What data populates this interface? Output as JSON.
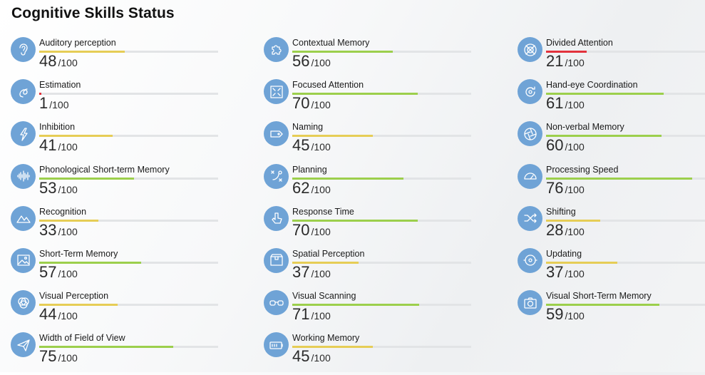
{
  "title": "Cognitive Skills Status",
  "max_label": "100",
  "separator": "/",
  "colors": {
    "green": "#9ccf4c",
    "yellow": "#e6cd56",
    "red": "#e2323c",
    "icon_bg": "#6fa3d6"
  },
  "columns": [
    {
      "skills": [
        {
          "name": "Auditory perception",
          "value": 48,
          "icon": "ear-icon"
        },
        {
          "name": "Estimation",
          "value": 1,
          "icon": "loop-icon"
        },
        {
          "name": "Inhibition",
          "value": 41,
          "icon": "bolt-icon"
        },
        {
          "name": "Phonological Short-term Memory",
          "value": 53,
          "icon": "soundwave-icon"
        },
        {
          "name": "Recognition",
          "value": 33,
          "icon": "mountains-icon"
        },
        {
          "name": "Short-Term Memory",
          "value": 57,
          "icon": "picture-icon"
        },
        {
          "name": "Visual Perception",
          "value": 44,
          "icon": "circles-icon"
        },
        {
          "name": "Width of Field of View",
          "value": 75,
          "icon": "paper-plane-icon"
        }
      ]
    },
    {
      "skills": [
        {
          "name": "Contextual Memory",
          "value": 56,
          "icon": "puzzle-icon"
        },
        {
          "name": "Focused Attention",
          "value": 70,
          "icon": "focus-icon"
        },
        {
          "name": "Naming",
          "value": 45,
          "icon": "tag-icon"
        },
        {
          "name": "Planning",
          "value": 62,
          "icon": "strategy-icon"
        },
        {
          "name": "Response Time",
          "value": 70,
          "icon": "pointer-icon"
        },
        {
          "name": "Spatial Perception",
          "value": 37,
          "icon": "box-icon"
        },
        {
          "name": "Visual Scanning",
          "value": 71,
          "icon": "glasses-icon"
        },
        {
          "name": "Working Memory",
          "value": 45,
          "icon": "battery-icon"
        }
      ]
    },
    {
      "skills": [
        {
          "name": "Divided Attention",
          "value": 21,
          "icon": "target-icon"
        },
        {
          "name": "Hand-eye Coordination",
          "value": 61,
          "icon": "rotate-icon"
        },
        {
          "name": "Non-verbal Memory",
          "value": 60,
          "icon": "aperture-icon"
        },
        {
          "name": "Processing Speed",
          "value": 76,
          "icon": "speedometer-icon"
        },
        {
          "name": "Shifting",
          "value": 28,
          "icon": "shuffle-icon"
        },
        {
          "name": "Updating",
          "value": 37,
          "icon": "refresh-icon"
        },
        {
          "name": "Visual Short-Term Memory",
          "value": 59,
          "icon": "camera-icon"
        }
      ]
    }
  ]
}
